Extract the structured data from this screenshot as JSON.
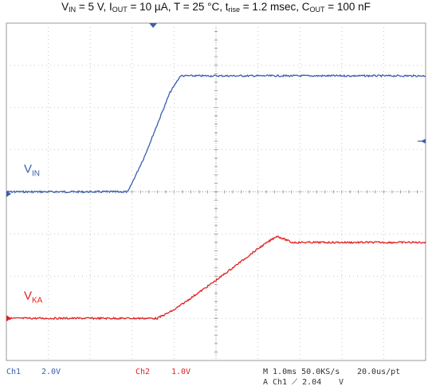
{
  "title": {
    "parts": [
      {
        "t": "V",
        "s": "IN"
      },
      {
        "t": " = 5 V, I",
        "s": "OUT"
      },
      {
        "t": " = 10 µA, T = 25 °C, t",
        "s": "rise"
      },
      {
        "t": " = 1.2 msec, C",
        "s": "OUT"
      },
      {
        "t": " = 100 nF",
        "s": ""
      }
    ]
  },
  "chart_data": {
    "type": "line",
    "grid": true,
    "x_divisions": 10,
    "y_divisions": 8,
    "x_unit": "ms/div",
    "timebase": "1.0ms",
    "series": [
      {
        "name": "V_IN",
        "label_main": "V",
        "label_sub": "IN",
        "channel": "Ch1",
        "scale": "2.0V",
        "color": "#3a5db0",
        "ground_div": -0.05,
        "points_div": [
          [
            0,
            0.0
          ],
          [
            2.9,
            0.0
          ],
          [
            3.3,
            0.85
          ],
          [
            3.6,
            1.6
          ],
          [
            3.9,
            2.35
          ],
          [
            4.15,
            2.75
          ],
          [
            4.3,
            2.75
          ],
          [
            10,
            2.75
          ]
        ]
      },
      {
        "name": "V_KA",
        "label_main": "V",
        "label_sub": "KA",
        "channel": "Ch2",
        "scale": "1.0V",
        "color": "#e02020",
        "ground_div": -3.0,
        "points_div": [
          [
            0,
            -3.0
          ],
          [
            3.6,
            -3.0
          ],
          [
            4.0,
            -2.8
          ],
          [
            5.0,
            -2.1
          ],
          [
            6.0,
            -1.35
          ],
          [
            6.45,
            -1.05
          ],
          [
            6.7,
            -1.15
          ],
          [
            6.8,
            -1.2
          ],
          [
            10,
            -1.2
          ]
        ]
      }
    ]
  },
  "status": {
    "ch1_label": "Ch1",
    "ch1_scale": "2.0V",
    "ch2_label": "Ch2",
    "ch2_scale": "1.0V",
    "horiz": "M 1.0ms 50.0KS/s",
    "sample": "20.0us/pt",
    "trigger": "A  Ch1  ⟋  2.04",
    "trig_tail": "V"
  }
}
